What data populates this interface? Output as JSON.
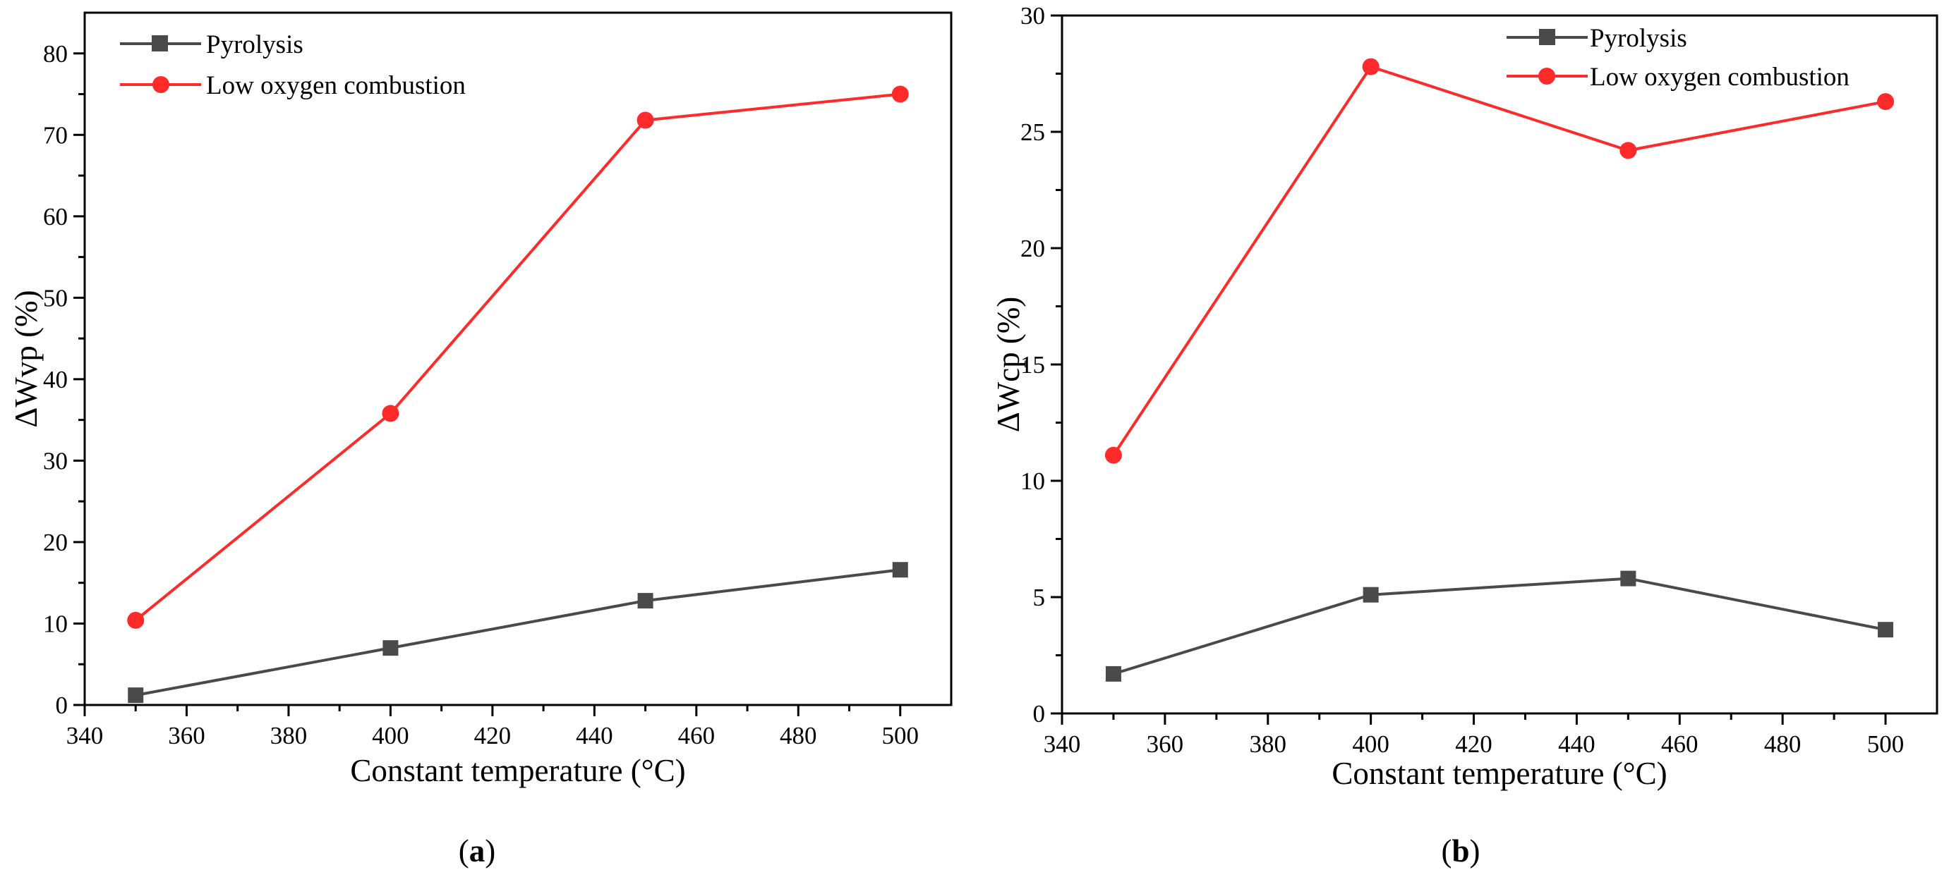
{
  "chart_data": [
    {
      "id": "a",
      "type": "line",
      "caption_letter": "a",
      "xlabel": "Constant temperature (°C)",
      "ylabel": "ΔWvp (%)",
      "xlim": [
        340,
        510
      ],
      "ylim": [
        0,
        85
      ],
      "xticks": [
        340,
        360,
        380,
        400,
        420,
        440,
        460,
        480,
        500
      ],
      "yticks": [
        0,
        10,
        20,
        30,
        40,
        50,
        60,
        70,
        80
      ],
      "legend_position": "top-left",
      "x": [
        350,
        400,
        450,
        500
      ],
      "series": [
        {
          "name": "Pyrolysis",
          "color": "#4a4a4a",
          "marker": "square",
          "values": [
            1.2,
            7.0,
            12.8,
            16.6
          ]
        },
        {
          "name": "Low oxygen combustion",
          "color": "#ff2a2a",
          "marker": "circle",
          "values": [
            10.4,
            35.8,
            71.8,
            75.0
          ]
        }
      ]
    },
    {
      "id": "b",
      "type": "line",
      "caption_letter": "b",
      "xlabel": "Constant temperature (°C)",
      "ylabel": "ΔWcp (%)",
      "xlim": [
        340,
        510
      ],
      "ylim": [
        0,
        30
      ],
      "xticks": [
        340,
        360,
        380,
        400,
        420,
        440,
        460,
        480,
        500
      ],
      "yticks": [
        0,
        5,
        10,
        15,
        20,
        25,
        30
      ],
      "legend_position": "top-right",
      "x": [
        350,
        400,
        450,
        500
      ],
      "series": [
        {
          "name": "Pyrolysis",
          "color": "#4a4a4a",
          "marker": "square",
          "values": [
            1.7,
            5.1,
            5.8,
            3.6
          ]
        },
        {
          "name": "Low oxygen combustion",
          "color": "#ff2a2a",
          "marker": "circle",
          "values": [
            11.1,
            27.8,
            24.2,
            26.3
          ]
        }
      ]
    }
  ]
}
